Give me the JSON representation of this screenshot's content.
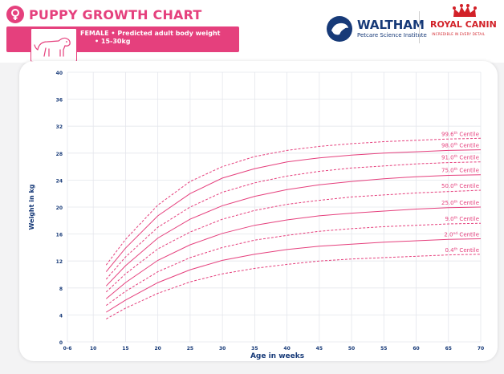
{
  "header": {
    "title": "PUPPY GROWTH CHART",
    "subtitle_line1": "FEMALE • Predicted adult body weight",
    "subtitle_line2": "• 15-30kg",
    "brand_color": "#e5407d",
    "title_icon": "female-symbol-icon"
  },
  "logos": {
    "waltham_name": "WALTHAM",
    "waltham_sub": "Petcare Science Institute",
    "waltham_color": "#173a78",
    "royal_canin_name": "ROYAL CANIN",
    "royal_canin_tag": "INCREDIBLE IN EVERY DETAIL",
    "royal_canin_color": "#d22128"
  },
  "chart_data": {
    "type": "line",
    "title": "PUPPY GROWTH CHART",
    "xlabel": "Age in weeks",
    "ylabel": "Weight in kg",
    "xlim": [
      6,
      70
    ],
    "ylim": [
      0,
      40
    ],
    "x_ticks": [
      "0-6",
      "10",
      "15",
      "20",
      "25",
      "30",
      "35",
      "40",
      "45",
      "50",
      "55",
      "60",
      "65",
      "70"
    ],
    "y_ticks": [
      0,
      4,
      8,
      12,
      16,
      20,
      24,
      28,
      32,
      36,
      40
    ],
    "grid": true,
    "line_color": "#e5407d",
    "x": [
      12,
      15,
      20,
      25,
      30,
      35,
      40,
      45,
      50,
      55,
      60,
      65,
      70
    ],
    "series": [
      {
        "name": "99.6th Centile",
        "values": [
          11.4,
          15.2,
          20.3,
          23.8,
          26.0,
          27.5,
          28.4,
          29.0,
          29.4,
          29.7,
          29.9,
          30.1,
          30.2
        ],
        "style": "dashed"
      },
      {
        "name": "98.0th Centile",
        "values": [
          10.4,
          13.9,
          18.7,
          22.0,
          24.3,
          25.7,
          26.7,
          27.3,
          27.7,
          28.0,
          28.2,
          28.4,
          28.5
        ],
        "style": "solid"
      },
      {
        "name": "91.0th Centile",
        "values": [
          9.3,
          12.6,
          17.0,
          20.0,
          22.2,
          23.6,
          24.6,
          25.3,
          25.8,
          26.1,
          26.4,
          26.6,
          26.7
        ],
        "style": "dashed"
      },
      {
        "name": "75.0th Centile",
        "values": [
          8.3,
          11.3,
          15.4,
          18.2,
          20.2,
          21.6,
          22.6,
          23.3,
          23.8,
          24.2,
          24.5,
          24.7,
          24.8
        ],
        "style": "solid"
      },
      {
        "name": "50.0th Centile",
        "values": [
          7.4,
          10.1,
          13.8,
          16.3,
          18.2,
          19.5,
          20.4,
          21.0,
          21.5,
          21.8,
          22.1,
          22.3,
          22.5
        ],
        "style": "dashed"
      },
      {
        "name": "25.0th Centile",
        "values": [
          6.4,
          8.8,
          12.1,
          14.4,
          16.1,
          17.3,
          18.1,
          18.7,
          19.1,
          19.4,
          19.7,
          19.9,
          20.0
        ],
        "style": "solid"
      },
      {
        "name": "9.0th Centile",
        "values": [
          5.4,
          7.5,
          10.4,
          12.5,
          14.0,
          15.1,
          15.8,
          16.4,
          16.8,
          17.1,
          17.3,
          17.5,
          17.6
        ],
        "style": "dashed"
      },
      {
        "name": "2.0th Centile",
        "values": [
          4.4,
          6.2,
          8.8,
          10.7,
          12.1,
          13.0,
          13.7,
          14.2,
          14.5,
          14.8,
          15.0,
          15.2,
          15.3
        ],
        "style": "solid"
      },
      {
        "name": "0.4th Centile",
        "values": [
          3.4,
          5.0,
          7.2,
          8.9,
          10.1,
          10.9,
          11.5,
          12.0,
          12.3,
          12.5,
          12.7,
          12.9,
          13.0
        ],
        "style": "dashed"
      }
    ],
    "series_labels": [
      {
        "num": "99.6",
        "sup": "th",
        "word": "Centile"
      },
      {
        "num": "98.0",
        "sup": "th",
        "word": "Centile"
      },
      {
        "num": "91.0",
        "sup": "th",
        "word": "Centile"
      },
      {
        "num": "75.0",
        "sup": "th",
        "word": "Centile"
      },
      {
        "num": "50.0",
        "sup": "th",
        "word": "Centile"
      },
      {
        "num": "25.0",
        "sup": "th",
        "word": "Centile"
      },
      {
        "num": "9.0",
        "sup": "th",
        "word": "Centile"
      },
      {
        "num": "2.0",
        "sup": "nd",
        "word": "Centile"
      },
      {
        "num": "0.4",
        "sup": "th",
        "word": "Centile"
      }
    ]
  }
}
